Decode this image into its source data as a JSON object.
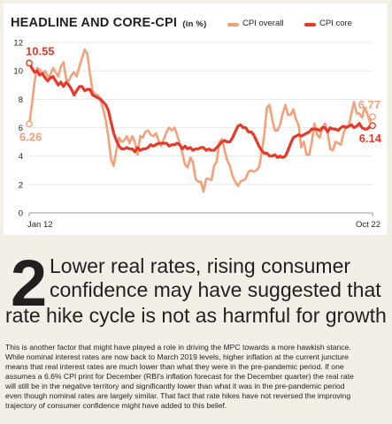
{
  "chart_data": {
    "type": "line",
    "title": "HEADLINE AND CORE-CPI",
    "unit": "(in %)",
    "x_start_label": "Jan 12",
    "x_end_label": "Oct 22",
    "ylim": [
      0,
      12
    ],
    "y_ticks": [
      "0",
      "2",
      "4",
      "6",
      "8",
      "10",
      "12"
    ],
    "series": [
      {
        "name": "CPI overall",
        "color": "#f4a07a",
        "values": [
          6.26,
          7.6,
          9.2,
          10.2,
          10.1,
          9.8,
          10.0,
          9.6,
          9.7,
          10.2,
          9.9,
          9.6,
          10.3,
          10.6,
          9.4,
          9.3,
          9.7,
          9.9,
          9.6,
          10.3,
          10.9,
          11.5,
          11.2,
          9.8,
          8.6,
          8.3,
          8.3,
          7.9,
          7.3,
          6.5,
          5.3,
          3.8,
          3.3,
          4.4,
          5.3,
          5.0,
          5.1,
          5.4,
          4.9,
          5.4,
          5.0,
          4.1,
          5.4,
          5.3,
          5.7,
          5.8,
          5.5,
          5.4,
          5.6,
          5.1,
          4.7,
          5.2,
          5.7,
          6.0,
          5.8,
          6.0,
          5.5,
          4.9,
          4.2,
          3.4,
          3.2,
          3.9,
          3.6,
          2.4,
          2.2,
          2.2,
          1.5,
          2.4,
          2.4,
          2.3,
          3.3,
          3.6,
          5.0,
          5.2,
          4.4,
          3.7,
          3.3,
          2.6,
          2.2,
          1.9,
          2.2,
          2.3,
          2.4,
          2.9,
          3.0,
          2.9,
          3.0,
          3.2,
          4.2,
          5.5,
          7.4,
          7.6,
          6.6,
          5.8,
          5.8,
          6.2,
          7.0,
          7.6,
          6.9,
          6.9,
          7.3,
          6.6,
          6.2,
          4.6,
          5.0,
          4.1,
          4.1,
          5.0,
          6.3,
          5.5,
          5.3,
          6.0,
          6.3,
          5.6,
          4.5,
          4.4,
          5.0,
          4.9,
          4.8,
          5.6,
          6.1,
          6.1,
          7.0,
          7.8,
          7.0,
          7.0,
          6.7,
          7.4,
          7.0,
          6.4,
          6.77
        ]
      },
      {
        "name": "CPI core",
        "color": "#e8382a",
        "values": [
          10.55,
          10.2,
          9.9,
          10.0,
          9.7,
          9.8,
          9.5,
          9.3,
          9.5,
          9.6,
          9.3,
          9.0,
          9.2,
          8.9,
          9.2,
          9.0,
          8.7,
          8.3,
          8.6,
          8.9,
          8.9,
          8.6,
          8.7,
          8.7,
          8.3,
          8.2,
          8.1,
          8.0,
          7.8,
          7.6,
          7.2,
          6.4,
          5.6,
          5.1,
          4.7,
          4.5,
          4.5,
          4.6,
          4.5,
          4.5,
          4.3,
          4.6,
          4.4,
          4.5,
          4.5,
          4.6,
          4.8,
          4.7,
          4.8,
          4.9,
          4.9,
          4.9,
          4.9,
          4.7,
          4.8,
          4.8,
          4.9,
          4.8,
          4.5,
          4.7,
          4.5,
          4.6,
          4.4,
          4.5,
          4.5,
          4.6,
          4.6,
          4.4,
          4.5,
          4.4,
          4.4,
          4.6,
          4.8,
          5.0,
          5.1,
          5.0,
          5.0,
          5.3,
          5.7,
          6.1,
          6.2,
          6.0,
          6.0,
          5.7,
          5.7,
          5.5,
          5.1,
          4.7,
          4.4,
          4.2,
          4.2,
          4.0,
          4.0,
          4.1,
          3.9,
          4.0,
          3.9,
          4.0,
          4.4,
          4.9,
          5.3,
          5.4,
          5.5,
          5.4,
          5.5,
          5.6,
          5.7,
          5.9,
          5.9,
          5.9,
          5.8,
          6.0,
          6.0,
          5.7,
          6.0,
          5.9,
          5.9,
          5.8,
          6.0,
          6.1,
          6.0,
          6.1,
          6.2,
          6.0,
          6.1,
          6.3,
          6.0,
          5.9,
          5.9,
          6.1,
          6.14
        ]
      }
    ],
    "annotations": {
      "core_start": "10.55",
      "overall_start": "6.26",
      "overall_end": "6.77",
      "core_end": "6.14"
    }
  },
  "article": {
    "number": "2",
    "headline_line1": "Lower real rates, rising consumer",
    "headline_line2": "confidence may have suggested that",
    "headline_line3": "rate hike cycle is not as harmful for growth",
    "body_lines": [
      "This is another factor that might have played a role in driving the MPC towards a more hawkish stance.",
      "While nominal interest rates are now back to March 2019 levels, higher inflation at the current juncture",
      "means that real interest rates are much lower than what they were in the pre-pandemic period. If one",
      "assumes a 6.6% CPI print for December (RBI's inflation forecast for the December quarter) the real rate",
      "will still be in the negative territory and significantly lower than what it was in the pre-pandemic period",
      "even though nominal rates are largely similar. That fact that rate hikes have not reversed the improving",
      "trajectory of consumer confidence might have added to this belief."
    ]
  }
}
